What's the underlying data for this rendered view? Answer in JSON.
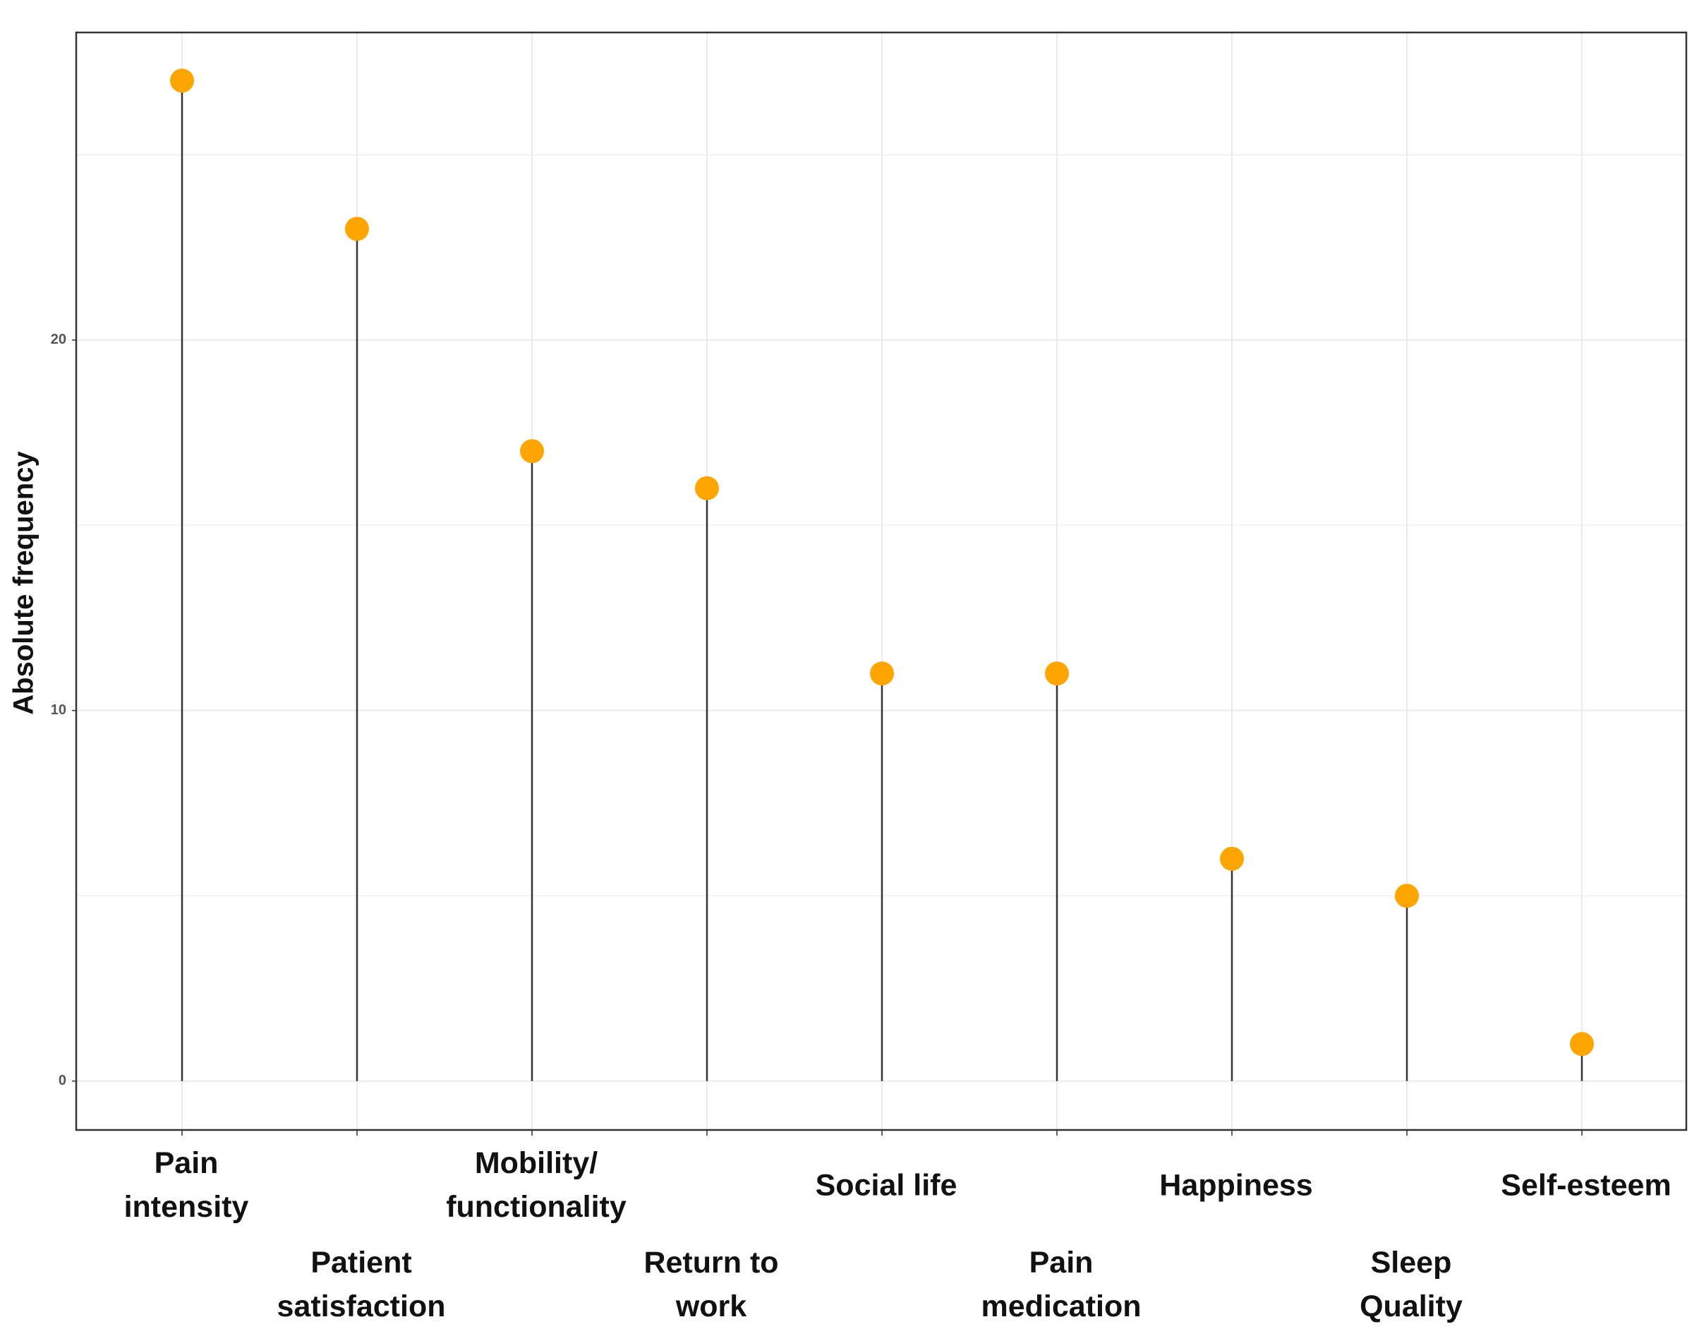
{
  "chart_data": {
    "type": "lollipop",
    "y_label": "Absolute frequency",
    "categories": [
      "Pain\nintensity",
      "Patient\nsatisfaction",
      "Mobility/\nfunctionality",
      "Return to\nwork",
      "Social life",
      "Pain\nmedication",
      "Happiness",
      "Sleep\nQuality",
      "Self-esteem"
    ],
    "values": [
      27,
      23,
      17,
      16,
      11,
      11,
      6,
      5,
      1
    ],
    "color": "#FFA500",
    "ylim": [
      -1.32,
      28.3
    ],
    "yticks": [
      0,
      10,
      20
    ],
    "grid": true
  }
}
